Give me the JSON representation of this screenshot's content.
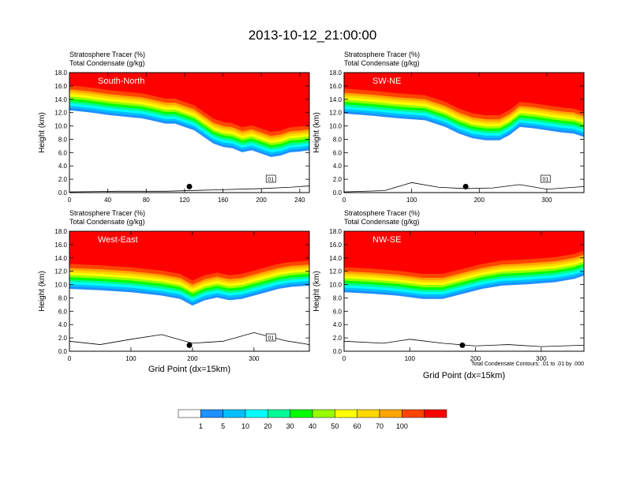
{
  "title": "2013-10-12_21:00:00",
  "colors": {
    "red": "#ff0000",
    "palette": [
      "#ffffff",
      "#1e90ff",
      "#0096ff",
      "#00ffff",
      "#00fa96",
      "#00ff00",
      "#96ff00",
      "#ffff00",
      "#ffd700",
      "#ffa500",
      "#ff4500",
      "#ff0000"
    ]
  },
  "chart_data": [
    {
      "type": "contour-section",
      "panel": "South-North",
      "legend_lines": [
        "Stratosphere Tracer   (%)",
        "Total Condensate   (g/kg)"
      ],
      "ylabel": "Height (km)",
      "xlabel": "",
      "xlim": [
        0,
        250
      ],
      "ylim": [
        0,
        18
      ],
      "xticks": [
        0,
        40,
        80,
        120,
        160,
        200,
        240
      ],
      "yticks": [
        0,
        2,
        4,
        6,
        8,
        10,
        12,
        14,
        16,
        18
      ],
      "ytick_labels": [
        "0.0",
        "2.0",
        "4.0",
        "6.0",
        "8.0",
        "10.0",
        "12.0",
        "14.0",
        "16.0",
        "18.0"
      ],
      "contour_label": "01",
      "marker_x": 125,
      "tracer_boundary": [
        [
          0,
          15.5
        ],
        [
          20,
          15.2
        ],
        [
          40,
          14.8
        ],
        [
          60,
          14.5
        ],
        [
          75,
          14.3
        ],
        [
          85,
          14.0
        ],
        [
          100,
          13.5
        ],
        [
          110,
          13.5
        ],
        [
          120,
          13.0
        ],
        [
          130,
          12.5
        ],
        [
          140,
          11.5
        ],
        [
          150,
          10.5
        ],
        [
          160,
          10.0
        ],
        [
          170,
          9.8
        ],
        [
          180,
          9.2
        ],
        [
          190,
          9.5
        ],
        [
          200,
          9.0
        ],
        [
          210,
          8.5
        ],
        [
          220,
          8.7
        ],
        [
          230,
          9.2
        ],
        [
          240,
          9.3
        ],
        [
          250,
          9.5
        ]
      ],
      "terrain": [
        [
          0,
          0.1
        ],
        [
          50,
          0.2
        ],
        [
          100,
          0.2
        ],
        [
          150,
          0.4
        ],
        [
          200,
          0.6
        ],
        [
          230,
          0.8
        ],
        [
          250,
          1.0
        ]
      ]
    },
    {
      "type": "contour-section",
      "panel": "SW-NE",
      "legend_lines": [
        "Stratosphere Tracer   (%)",
        "Total Condensate   (g/kg)"
      ],
      "ylabel": "Height (km)",
      "xlabel": "",
      "xlim": [
        0,
        355
      ],
      "ylim": [
        0,
        18
      ],
      "xticks": [
        0,
        100,
        200,
        300
      ],
      "yticks": [
        0,
        2,
        4,
        6,
        8,
        10,
        12,
        14,
        16,
        18
      ],
      "ytick_labels": [
        "0.0",
        "2.0",
        "4.0",
        "6.0",
        "8.0",
        "10.0",
        "12.0",
        "14.0",
        "16.0",
        "18.0"
      ],
      "contour_label": "01",
      "marker_x": 180,
      "tracer_boundary": [
        [
          0,
          15.0
        ],
        [
          40,
          14.7
        ],
        [
          80,
          14.3
        ],
        [
          120,
          14.0
        ],
        [
          150,
          13.0
        ],
        [
          170,
          12.0
        ],
        [
          190,
          11.3
        ],
        [
          210,
          11.0
        ],
        [
          230,
          11.0
        ],
        [
          245,
          11.8
        ],
        [
          260,
          13.0
        ],
        [
          280,
          12.8
        ],
        [
          300,
          12.5
        ],
        [
          320,
          12.2
        ],
        [
          340,
          12.0
        ],
        [
          355,
          11.5
        ]
      ],
      "terrain": [
        [
          0,
          0.1
        ],
        [
          60,
          0.3
        ],
        [
          100,
          1.5
        ],
        [
          140,
          0.8
        ],
        [
          180,
          0.6
        ],
        [
          220,
          0.7
        ],
        [
          260,
          1.2
        ],
        [
          300,
          0.5
        ],
        [
          355,
          0.9
        ]
      ]
    },
    {
      "type": "contour-section",
      "panel": "West-East",
      "legend_lines": [
        "Stratosphere Tracer   (%)",
        "Total Condensate   (g/kg)"
      ],
      "ylabel": "Height (km)",
      "xlabel": "Grid Point (dx=15km)",
      "xlim": [
        0,
        390
      ],
      "ylim": [
        0,
        18
      ],
      "xticks": [
        0,
        100,
        200,
        300
      ],
      "yticks": [
        0,
        2,
        4,
        6,
        8,
        10,
        12,
        14,
        16,
        18
      ],
      "ytick_labels": [
        "0.0",
        "2.0",
        "4.0",
        "6.0",
        "8.0",
        "10.0",
        "12.0",
        "14.0",
        "16.0",
        "18.0"
      ],
      "contour_label": "01",
      "marker_x": 195,
      "tracer_boundary": [
        [
          0,
          12.5
        ],
        [
          50,
          12.3
        ],
        [
          100,
          12.0
        ],
        [
          150,
          11.5
        ],
        [
          180,
          11.0
        ],
        [
          200,
          10.0
        ],
        [
          220,
          10.8
        ],
        [
          240,
          11.2
        ],
        [
          260,
          10.8
        ],
        [
          280,
          11.0
        ],
        [
          300,
          11.5
        ],
        [
          320,
          12.0
        ],
        [
          340,
          12.5
        ],
        [
          360,
          12.8
        ],
        [
          390,
          13.0
        ]
      ],
      "terrain": [
        [
          0,
          1.5
        ],
        [
          50,
          1.0
        ],
        [
          100,
          1.8
        ],
        [
          150,
          2.5
        ],
        [
          200,
          1.2
        ],
        [
          250,
          1.5
        ],
        [
          300,
          2.8
        ],
        [
          350,
          1.6
        ],
        [
          390,
          1.0
        ]
      ]
    },
    {
      "type": "contour-section",
      "panel": "NW-SE",
      "legend_lines": [
        "Stratosphere Tracer   (%)",
        "Total Condensate   (g/kg)"
      ],
      "ylabel": "Height (km)",
      "xlabel": "Grid Point (dx=15km)",
      "xlim": [
        0,
        365
      ],
      "ylim": [
        0,
        18
      ],
      "xticks": [
        0,
        100,
        200,
        300
      ],
      "yticks": [
        0,
        2,
        4,
        6,
        8,
        10,
        12,
        14,
        16,
        18
      ],
      "ytick_labels": [
        "0.0",
        "2.0",
        "4.0",
        "6.0",
        "8.0",
        "10.0",
        "12.0",
        "14.0",
        "16.0",
        "18.0"
      ],
      "contour_label": "",
      "marker_x": 180,
      "footnote": "Total Condensate Contours: .01 to .01 by .000",
      "tracer_boundary": [
        [
          0,
          12.0
        ],
        [
          40,
          11.8
        ],
        [
          80,
          11.5
        ],
        [
          120,
          11.0
        ],
        [
          150,
          11.0
        ],
        [
          170,
          11.5
        ],
        [
          190,
          12.0
        ],
        [
          210,
          12.5
        ],
        [
          240,
          13.0
        ],
        [
          280,
          13.2
        ],
        [
          320,
          13.5
        ],
        [
          350,
          14.0
        ],
        [
          365,
          14.5
        ]
      ],
      "terrain": [
        [
          0,
          1.5
        ],
        [
          60,
          1.2
        ],
        [
          100,
          1.8
        ],
        [
          150,
          1.2
        ],
        [
          200,
          0.8
        ],
        [
          250,
          1.0
        ],
        [
          300,
          0.7
        ],
        [
          365,
          0.9
        ]
      ]
    }
  ],
  "colorbar": {
    "labels": [
      "1",
      "5",
      "10",
      "20",
      "30",
      "40",
      "50",
      "60",
      "70",
      "100"
    ],
    "colors": [
      "#ffffff",
      "#1e90ff",
      "#00bfff",
      "#00ffff",
      "#00fa96",
      "#00ff00",
      "#96ff00",
      "#ffff00",
      "#ffd700",
      "#ffa500",
      "#ff4500",
      "#ff0000"
    ]
  }
}
